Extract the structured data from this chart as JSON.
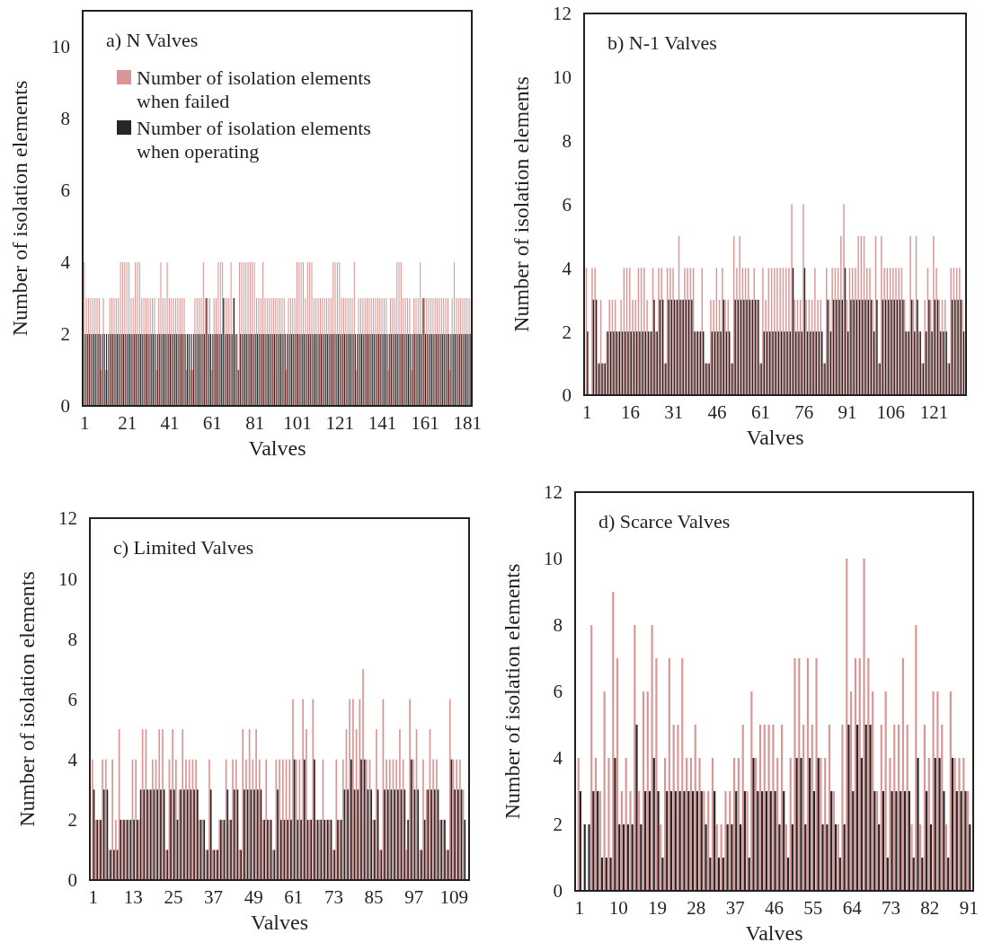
{
  "chart_data": [
    {
      "type": "bar",
      "title": "a) N Valves",
      "xlabel": "Valves",
      "ylabel": "Number of isolation elements",
      "legend": "top",
      "x": [
        1,
        2,
        3,
        4,
        5,
        6,
        7,
        8,
        9,
        10,
        11,
        12,
        13,
        14,
        15,
        16,
        17,
        18,
        19,
        20,
        21,
        22,
        23,
        24,
        25,
        26,
        27,
        28,
        29,
        30,
        31,
        32,
        33,
        34,
        35,
        36,
        37,
        38,
        39,
        40,
        41,
        42,
        43,
        44,
        45,
        46,
        47,
        48,
        49,
        50,
        51,
        52,
        53,
        54,
        55,
        56,
        57,
        58,
        59,
        60,
        61,
        62,
        63,
        64,
        65,
        66,
        67,
        68,
        69,
        70,
        71,
        72,
        73,
        74,
        75,
        76,
        77,
        78,
        79,
        80,
        81,
        82,
        83,
        84,
        85,
        86,
        87,
        88,
        89,
        90,
        91,
        92,
        93,
        94,
        95,
        96,
        97,
        98,
        99,
        100,
        101,
        102,
        103,
        104,
        105,
        106,
        107,
        108,
        109,
        110,
        111,
        112,
        113,
        114,
        115,
        116,
        117,
        118,
        119,
        120,
        121,
        122,
        123,
        124,
        125,
        126,
        127,
        128,
        129,
        130,
        131,
        132,
        133,
        134,
        135,
        136,
        137,
        138,
        139,
        140,
        141,
        142,
        143,
        144,
        145,
        146,
        147,
        148,
        149,
        150,
        151,
        152,
        153,
        154,
        155,
        156,
        157,
        158,
        159,
        160,
        161,
        162,
        163,
        164,
        165,
        166,
        167,
        168,
        169,
        170,
        171,
        172,
        173,
        174,
        175,
        176,
        177,
        178,
        179,
        180,
        181,
        182
      ],
      "xlim": [
        0,
        183
      ],
      "xticks": [
        1,
        21,
        41,
        61,
        81,
        101,
        121,
        141,
        161,
        181
      ],
      "ylim": [
        0,
        11
      ],
      "yticks": [
        0,
        2,
        4,
        6,
        8,
        10
      ],
      "series": [
        {
          "name": "Number of isolation elements when failed",
          "color": "#d99694",
          "values": [
            4,
            3,
            3,
            3,
            3,
            3,
            3,
            3,
            1,
            3,
            1,
            1,
            3,
            3,
            3,
            3,
            3,
            4,
            4,
            4,
            4,
            4,
            3,
            3,
            4,
            4,
            4,
            3,
            3,
            3,
            3,
            3,
            3,
            3,
            1,
            3,
            4,
            3,
            3,
            4,
            3,
            3,
            3,
            3,
            3,
            3,
            3,
            3,
            1,
            2,
            1,
            1,
            3,
            3,
            3,
            3,
            4,
            3,
            3,
            3,
            1,
            3,
            3,
            4,
            4,
            4,
            3,
            3,
            3,
            4,
            3,
            2,
            2,
            4,
            4,
            4,
            4,
            4,
            4,
            4,
            4,
            3,
            3,
            3,
            4,
            3,
            3,
            3,
            3,
            3,
            3,
            3,
            3,
            3,
            3,
            1,
            3,
            3,
            3,
            3,
            4,
            4,
            4,
            4,
            3,
            4,
            4,
            4,
            3,
            3,
            3,
            3,
            3,
            3,
            3,
            3,
            3,
            4,
            4,
            4,
            4,
            3,
            3,
            3,
            3,
            3,
            3,
            4,
            1,
            3,
            3,
            3,
            3,
            3,
            3,
            3,
            3,
            3,
            3,
            3,
            3,
            3,
            3,
            1,
            3,
            3,
            3,
            4,
            4,
            4,
            3,
            3,
            3,
            3,
            1,
            3,
            3,
            3,
            4,
            3,
            3,
            3,
            3,
            3,
            3,
            3,
            3,
            3,
            3,
            3,
            3,
            3,
            1,
            3,
            4,
            3,
            3,
            3,
            3,
            3,
            3,
            3
          ]
        },
        {
          "name": "Number of isolation elements when operating",
          "color": "#262626",
          "values": [
            2,
            2,
            2,
            2,
            2,
            2,
            2,
            2,
            2,
            2,
            2,
            2,
            2,
            2,
            2,
            2,
            2,
            2,
            2,
            2,
            2,
            2,
            2,
            2,
            2,
            2,
            2,
            2,
            2,
            2,
            2,
            2,
            2,
            2,
            2,
            2,
            2,
            2,
            2,
            2,
            2,
            2,
            2,
            2,
            2,
            2,
            2,
            2,
            2,
            2,
            2,
            2,
            2,
            2,
            2,
            2,
            2,
            3,
            2,
            2,
            2,
            2,
            2,
            2,
            2,
            3,
            2,
            2,
            2,
            2,
            3,
            2,
            1,
            2,
            2,
            2,
            2,
            2,
            2,
            2,
            2,
            2,
            2,
            2,
            2,
            2,
            2,
            2,
            2,
            2,
            2,
            2,
            2,
            2,
            2,
            2,
            2,
            2,
            2,
            2,
            2,
            2,
            2,
            2,
            2,
            2,
            2,
            2,
            2,
            2,
            2,
            2,
            2,
            2,
            2,
            2,
            2,
            2,
            2,
            2,
            2,
            2,
            2,
            2,
            2,
            2,
            2,
            2,
            2,
            2,
            2,
            2,
            2,
            2,
            2,
            2,
            2,
            2,
            2,
            2,
            2,
            2,
            2,
            2,
            2,
            2,
            2,
            2,
            2,
            2,
            2,
            2,
            2,
            2,
            2,
            2,
            2,
            2,
            2,
            3,
            2,
            2,
            2,
            2,
            2,
            2,
            2,
            2,
            2,
            2,
            2,
            2,
            2,
            2,
            2,
            2,
            2,
            2,
            2,
            2,
            2,
            2
          ]
        }
      ]
    },
    {
      "type": "bar",
      "title": "b) N-1 Valves",
      "xlabel": "Valves",
      "ylabel": "Number of isolation elements",
      "x": [
        1,
        2,
        3,
        4,
        5,
        6,
        7,
        8,
        9,
        10,
        11,
        12,
        13,
        14,
        15,
        16,
        17,
        18,
        19,
        20,
        21,
        22,
        23,
        24,
        25,
        26,
        27,
        28,
        29,
        30,
        31,
        32,
        33,
        34,
        35,
        36,
        37,
        38,
        39,
        40,
        41,
        42,
        43,
        44,
        45,
        46,
        47,
        48,
        49,
        50,
        51,
        52,
        53,
        54,
        55,
        56,
        57,
        58,
        59,
        60,
        61,
        62,
        63,
        64,
        65,
        66,
        67,
        68,
        69,
        70,
        71,
        72,
        73,
        74,
        75,
        76,
        77,
        78,
        79,
        80,
        81,
        82,
        83,
        84,
        85,
        86,
        87,
        88,
        89,
        90,
        91,
        92,
        93,
        94,
        95,
        96,
        97,
        98,
        99,
        100,
        101,
        102,
        103,
        104,
        105,
        106,
        107,
        108,
        109,
        110,
        111,
        112,
        113,
        114,
        115,
        116,
        117,
        118,
        119,
        120,
        121,
        122,
        123,
        124,
        125,
        126,
        127,
        128,
        129,
        130,
        131
      ],
      "xlim": [
        0,
        132
      ],
      "xticks": [
        1,
        16,
        31,
        46,
        61,
        76,
        91,
        106,
        121
      ],
      "ylim": [
        0,
        12
      ],
      "yticks": [
        0,
        2,
        4,
        6,
        8,
        10,
        12
      ],
      "series": [
        {
          "color": "#d99694",
          "values": [
            4,
            0,
            4,
            4,
            1,
            3,
            1,
            2,
            3,
            3,
            3,
            2,
            3,
            4,
            4,
            4,
            3,
            3,
            4,
            4,
            4,
            3,
            2,
            4,
            2,
            4,
            4,
            1,
            4,
            4,
            4,
            3,
            5,
            3,
            4,
            4,
            4,
            4,
            2,
            2,
            4,
            1,
            1,
            3,
            3,
            4,
            3,
            4,
            3,
            3,
            1,
            5,
            4,
            5,
            4,
            4,
            4,
            3,
            4,
            3,
            1,
            4,
            3,
            4,
            4,
            4,
            4,
            4,
            4,
            4,
            4,
            6,
            3,
            3,
            3,
            6,
            3,
            3,
            3,
            4,
            3,
            3,
            1,
            4,
            3,
            4,
            4,
            4,
            5,
            6,
            3,
            4,
            4,
            4,
            5,
            5,
            5,
            4,
            4,
            3,
            5,
            1,
            5,
            4,
            4,
            4,
            4,
            4,
            4,
            4,
            3,
            2,
            5,
            3,
            5,
            2,
            1,
            3,
            4,
            3,
            5,
            4,
            3,
            3,
            3,
            1,
            4,
            4,
            4,
            4,
            3
          ]
        },
        {
          "color": "#262626",
          "values": [
            2,
            0,
            3,
            3,
            1,
            1,
            1,
            2,
            2,
            2,
            2,
            2,
            2,
            2,
            2,
            2,
            2,
            2,
            2,
            2,
            2,
            2,
            2,
            3,
            2,
            3,
            3,
            1,
            3,
            3,
            3,
            3,
            3,
            3,
            3,
            3,
            3,
            2,
            2,
            2,
            2,
            1,
            1,
            2,
            2,
            2,
            2,
            3,
            2,
            2,
            1,
            3,
            3,
            3,
            3,
            3,
            3,
            3,
            3,
            3,
            1,
            2,
            2,
            2,
            2,
            2,
            2,
            2,
            2,
            2,
            2,
            4,
            2,
            2,
            2,
            4,
            2,
            2,
            2,
            2,
            2,
            2,
            1,
            3,
            2,
            3,
            3,
            3,
            3,
            4,
            2,
            3,
            3,
            3,
            3,
            3,
            3,
            3,
            3,
            2,
            3,
            1,
            3,
            3,
            3,
            3,
            3,
            3,
            3,
            3,
            2,
            2,
            3,
            2,
            3,
            2,
            1,
            2,
            3,
            2,
            3,
            3,
            2,
            2,
            2,
            1,
            3,
            3,
            3,
            3,
            2
          ]
        }
      ]
    },
    {
      "type": "bar",
      "title": "c) Limited Valves",
      "xlabel": "Valves",
      "ylabel": "Number of isolation elements",
      "x": [
        1,
        2,
        3,
        4,
        5,
        6,
        7,
        8,
        9,
        10,
        11,
        12,
        13,
        14,
        15,
        16,
        17,
        18,
        19,
        20,
        21,
        22,
        23,
        24,
        25,
        26,
        27,
        28,
        29,
        30,
        31,
        32,
        33,
        34,
        35,
        36,
        37,
        38,
        39,
        40,
        41,
        42,
        43,
        44,
        45,
        46,
        47,
        48,
        49,
        50,
        51,
        52,
        53,
        54,
        55,
        56,
        57,
        58,
        59,
        60,
        61,
        62,
        63,
        64,
        65,
        66,
        67,
        68,
        69,
        70,
        71,
        72,
        73,
        74,
        75,
        76,
        77,
        78,
        79,
        80,
        81,
        82,
        83,
        84,
        85,
        86,
        87,
        88,
        89,
        90,
        91,
        92,
        93,
        94,
        95,
        96,
        97,
        98,
        99,
        100,
        101,
        102,
        103,
        104,
        105,
        106,
        107,
        108,
        109,
        110,
        111,
        112
      ],
      "xlim": [
        0,
        113.5
      ],
      "xticks": [
        1,
        13,
        25,
        37,
        49,
        61,
        73,
        85,
        97,
        109
      ],
      "ylim": [
        0,
        12
      ],
      "yticks": [
        0,
        2,
        4,
        6,
        8,
        10,
        12
      ],
      "series": [
        {
          "color": "#d99694",
          "values": [
            4,
            2,
            2,
            4,
            4,
            1,
            4,
            2,
            5,
            2,
            2,
            2,
            4,
            4,
            2,
            5,
            5,
            3,
            4,
            4,
            5,
            5,
            1,
            4,
            5,
            4,
            3,
            5,
            4,
            4,
            4,
            4,
            2,
            2,
            1,
            4,
            1,
            1,
            2,
            2,
            4,
            2,
            4,
            4,
            1,
            5,
            4,
            5,
            4,
            5,
            4,
            2,
            4,
            2,
            1,
            4,
            4,
            4,
            4,
            4,
            6,
            4,
            4,
            6,
            5,
            2,
            6,
            2,
            2,
            4,
            2,
            2,
            1,
            4,
            2,
            4,
            5,
            6,
            6,
            5,
            6,
            7,
            4,
            4,
            2,
            5,
            1,
            6,
            4,
            4,
            4,
            4,
            5,
            4,
            1,
            6,
            4,
            5,
            1,
            4,
            3,
            5,
            4,
            4,
            2,
            2,
            1,
            6,
            4,
            4,
            4,
            3
          ]
        },
        {
          "color": "#262626",
          "values": [
            3,
            2,
            2,
            3,
            3,
            1,
            1,
            1,
            2,
            2,
            2,
            2,
            2,
            2,
            3,
            3,
            3,
            3,
            3,
            3,
            3,
            3,
            1,
            3,
            3,
            2,
            3,
            3,
            3,
            3,
            3,
            3,
            2,
            2,
            1,
            3,
            1,
            1,
            2,
            2,
            3,
            2,
            3,
            3,
            1,
            3,
            3,
            3,
            3,
            3,
            3,
            2,
            2,
            2,
            1,
            3,
            2,
            2,
            2,
            2,
            4,
            2,
            2,
            4,
            2,
            2,
            4,
            2,
            2,
            2,
            2,
            2,
            1,
            2,
            2,
            3,
            3,
            4,
            3,
            3,
            4,
            4,
            3,
            3,
            2,
            3,
            1,
            3,
            3,
            3,
            3,
            3,
            3,
            3,
            2,
            4,
            3,
            3,
            1,
            2,
            3,
            3,
            3,
            3,
            2,
            2,
            1,
            4,
            3,
            3,
            3,
            2
          ]
        }
      ]
    },
    {
      "type": "bar",
      "title": "d) Scarce Valves",
      "xlabel": "Valves",
      "ylabel": "Number of isolation elements",
      "x": [
        1,
        2,
        3,
        4,
        5,
        6,
        7,
        8,
        9,
        10,
        11,
        12,
        13,
        14,
        15,
        16,
        17,
        18,
        19,
        20,
        21,
        22,
        23,
        24,
        25,
        26,
        27,
        28,
        29,
        30,
        31,
        32,
        33,
        34,
        35,
        36,
        37,
        38,
        39,
        40,
        41,
        42,
        43,
        44,
        45,
        46,
        47,
        48,
        49,
        50,
        51,
        52,
        53,
        54,
        55,
        56,
        57,
        58,
        59,
        60,
        61,
        62,
        63,
        64,
        65,
        66,
        67,
        68,
        69,
        70,
        71,
        72,
        73,
        74,
        75,
        76,
        77,
        78,
        79,
        80,
        81,
        82,
        83,
        84,
        85,
        86,
        87,
        88,
        89,
        90,
        91
      ],
      "xlim": [
        0,
        92
      ],
      "xticks": [
        1,
        10,
        19,
        28,
        37,
        46,
        55,
        64,
        73,
        82,
        91
      ],
      "ylim": [
        0,
        12
      ],
      "yticks": [
        0,
        2,
        4,
        6,
        8,
        10,
        12
      ],
      "series": [
        {
          "color": "#d99694",
          "values": [
            4,
            0,
            0,
            8,
            4,
            3,
            6,
            4,
            9,
            7,
            3,
            4,
            3,
            8,
            3,
            6,
            6,
            8,
            7,
            2,
            4,
            7,
            5,
            5,
            7,
            4,
            4,
            5,
            4,
            3,
            3,
            4,
            2,
            2,
            3,
            3,
            4,
            4,
            5,
            3,
            6,
            4,
            5,
            5,
            5,
            5,
            4,
            5,
            2,
            4,
            7,
            7,
            5,
            7,
            5,
            7,
            4,
            4,
            5,
            3,
            2,
            5,
            10,
            6,
            7,
            7,
            10,
            7,
            6,
            3,
            5,
            6,
            4,
            5,
            5,
            7,
            5,
            2,
            8,
            2,
            5,
            4,
            6,
            6,
            5,
            2,
            6,
            4,
            4,
            4,
            3
          ]
        },
        {
          "color": "#262626",
          "values": [
            3,
            2,
            2,
            3,
            3,
            1,
            1,
            1,
            4,
            2,
            2,
            2,
            2,
            5,
            2,
            3,
            3,
            4,
            3,
            1,
            3,
            3,
            3,
            3,
            3,
            3,
            3,
            3,
            3,
            2,
            1,
            3,
            1,
            1,
            2,
            2,
            3,
            2,
            3,
            1,
            4,
            3,
            3,
            3,
            3,
            3,
            2,
            3,
            1,
            2,
            4,
            4,
            2,
            4,
            3,
            4,
            2,
            2,
            3,
            2,
            1,
            2,
            5,
            3,
            5,
            4,
            5,
            5,
            3,
            2,
            3,
            1,
            3,
            3,
            3,
            3,
            3,
            1,
            4,
            1,
            3,
            2,
            4,
            4,
            3,
            1,
            4,
            3,
            3,
            3,
            2
          ]
        }
      ]
    }
  ]
}
